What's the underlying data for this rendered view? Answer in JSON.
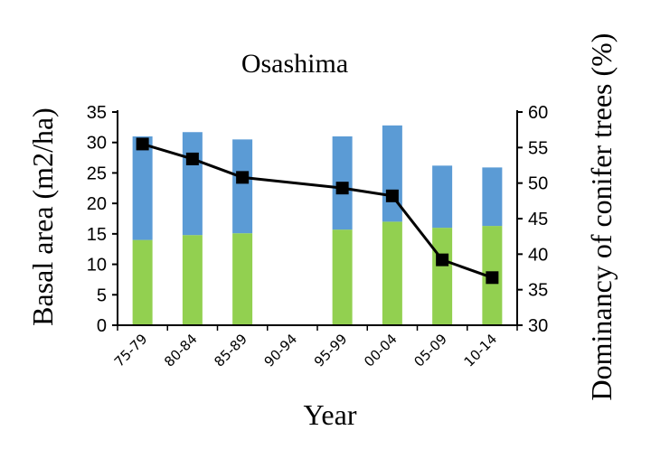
{
  "chart_data": {
    "type": "bar",
    "title": "Osashima",
    "xlabel": "Year",
    "ylabel": "Basal area (m2/ha)",
    "y2label": "Dominancy of conifer trees (%)",
    "categories": [
      "75-79",
      "80-84",
      "85-89",
      "90-94",
      "95-99",
      "00-04",
      "05-09",
      "10-14"
    ],
    "ylim": [
      0,
      35
    ],
    "yticks": [
      0,
      5,
      10,
      15,
      20,
      25,
      30,
      35
    ],
    "y2lim": [
      30,
      60
    ],
    "y2ticks": [
      30,
      35,
      40,
      45,
      50,
      55,
      60
    ],
    "stacked": true,
    "series": [
      {
        "type": "bar",
        "axis": "left",
        "color": "#92d050",
        "values": [
          14.0,
          14.8,
          15.1,
          null,
          15.7,
          17.0,
          16.0,
          16.3
        ]
      },
      {
        "type": "bar",
        "axis": "left",
        "color": "#5b9bd5",
        "values": [
          17.0,
          16.9,
          15.4,
          null,
          15.3,
          15.8,
          10.2,
          9.6
        ]
      },
      {
        "type": "line",
        "axis": "right",
        "color": "#000000",
        "marker": "square",
        "values": [
          55.5,
          53.4,
          50.8,
          null,
          49.3,
          48.2,
          39.2,
          36.7
        ]
      }
    ],
    "grid": false,
    "legend": "none"
  }
}
